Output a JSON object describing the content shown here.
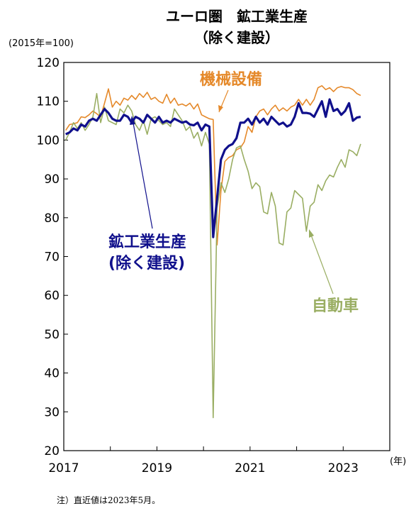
{
  "page": {
    "title_line1": "ユーロ圏　鉱工業生産",
    "title_line2": "（除く建設）",
    "y_unit": "(2015年=100)",
    "x_unit": "(年)",
    "note": "注）直近値は2023年5月。"
  },
  "chart_data": {
    "type": "line",
    "title": "ユーロ圏　鉱工業生産（除く建設）",
    "ylabel": "(2015年=100)",
    "xlabel": "(年)",
    "ylim": [
      20,
      120
    ],
    "yticks": [
      20,
      30,
      40,
      50,
      60,
      70,
      80,
      90,
      100,
      110,
      120
    ],
    "x_ticks": [
      "2017",
      "2019",
      "2021",
      "2023"
    ],
    "x_start": "2017-01",
    "x_end": "2023-05",
    "grid": false,
    "annotations": [
      {
        "text": "機械設備",
        "series": "機械設備"
      },
      {
        "text": "鉱工業生産",
        "series": "鉱工業生産（除く建設）"
      },
      {
        "text": "(除く建設)",
        "series": "鉱工業生産（除く建設）"
      },
      {
        "text": "自動車",
        "series": "自動車"
      }
    ],
    "series": [
      {
        "name": "機械設備",
        "color": "#E5892A",
        "values": [
          102.5,
          104.0,
          104.2,
          104.5,
          106.0,
          105.8,
          106.5,
          107.5,
          106.8,
          106.0,
          109.5,
          113.2,
          108.5,
          110.0,
          109.0,
          110.8,
          110.3,
          111.5,
          110.5,
          112.0,
          111.0,
          112.3,
          110.5,
          111.0,
          110.0,
          109.5,
          111.8,
          109.5,
          110.8,
          109.0,
          109.3,
          108.8,
          109.5,
          108.0,
          109.3,
          106.5,
          106.0,
          105.5,
          105.3,
          73.0,
          87.0,
          94.5,
          95.5,
          96.0,
          97.5,
          98.0,
          99.5,
          103.5,
          102.0,
          106.0,
          107.5,
          108.0,
          106.5,
          108.0,
          109.0,
          107.5,
          108.3,
          107.5,
          108.5,
          109.0,
          110.5,
          109.0,
          110.5,
          109.0,
          110.5,
          113.5,
          114.0,
          113.0,
          113.5,
          112.5,
          113.5,
          113.8,
          113.5,
          113.5,
          113.0,
          112.0,
          111.5
        ]
      },
      {
        "name": "自動車",
        "color": "#9AAE63",
        "values": [
          100.0,
          102.0,
          104.5,
          103.0,
          104.5,
          102.5,
          104.0,
          106.0,
          112.0,
          104.5,
          108.5,
          105.0,
          104.5,
          104.0,
          108.0,
          107.0,
          109.0,
          107.5,
          104.0,
          102.5,
          105.0,
          101.5,
          105.5,
          106.0,
          105.0,
          104.0,
          104.5,
          103.5,
          108.0,
          106.5,
          105.0,
          102.5,
          103.5,
          100.5,
          102.0,
          98.5,
          102.0,
          99.0,
          28.5,
          82.5,
          89.0,
          86.5,
          90.0,
          95.0,
          98.0,
          98.5,
          95.0,
          92.0,
          87.5,
          89.0,
          88.0,
          81.5,
          81.0,
          86.5,
          83.0,
          73.5,
          73.0,
          81.5,
          82.5,
          87.0,
          86.0,
          85.0,
          76.5,
          83.0,
          84.0,
          88.5,
          87.0,
          89.5,
          91.0,
          90.5,
          93.0,
          95.0,
          93.0,
          97.5,
          97.0,
          96.0,
          99.0
        ]
      },
      {
        "name": "鉱工業生産（除く建設）",
        "color": "#10108C",
        "values": [
          101.5,
          102.0,
          103.0,
          102.5,
          104.0,
          103.5,
          105.0,
          105.5,
          105.0,
          106.5,
          108.0,
          107.0,
          105.5,
          105.0,
          105.0,
          106.5,
          106.0,
          104.5,
          106.0,
          105.5,
          104.5,
          106.5,
          105.5,
          104.5,
          106.0,
          104.5,
          105.0,
          104.5,
          105.5,
          105.0,
          104.5,
          104.8,
          104.0,
          103.8,
          104.5,
          102.5,
          104.0,
          103.5,
          75.0,
          85.0,
          95.0,
          97.5,
          98.5,
          99.0,
          100.5,
          104.5,
          104.5,
          105.5,
          104.0,
          106.0,
          104.5,
          105.5,
          104.0,
          106.0,
          105.0,
          104.0,
          104.5,
          103.5,
          104.0,
          106.0,
          109.5,
          107.0,
          107.0,
          106.8,
          106.0,
          108.0,
          110.0,
          106.0,
          110.5,
          107.5,
          108.0,
          106.5,
          107.5,
          109.5,
          105.0,
          105.8,
          106.0
        ]
      }
    ]
  }
}
